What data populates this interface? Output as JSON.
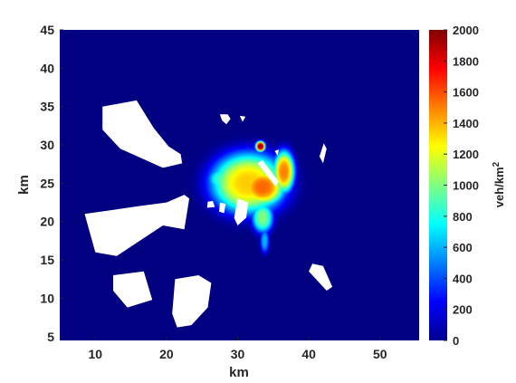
{
  "chart_data": {
    "type": "heatmap",
    "xlabel": "km",
    "ylabel": "km",
    "xlim": [
      5,
      55.5
    ],
    "ylim": [
      4.5,
      45
    ],
    "x_ticks": [
      10,
      20,
      30,
      40,
      50
    ],
    "y_ticks": [
      5,
      10,
      15,
      20,
      25,
      30,
      35,
      40,
      45
    ],
    "colorbar": {
      "label": "veh/km",
      "label_superscript": "2",
      "colormap": "jet",
      "range": [
        0,
        2000
      ],
      "ticks": [
        0,
        200,
        400,
        600,
        800,
        1000,
        1200,
        1400,
        1600,
        1800,
        2000
      ]
    },
    "background_value": 0,
    "hotspots": [
      {
        "x": 31.5,
        "y": 25,
        "sx": 4.2,
        "sy": 3.2,
        "peak": 1350
      },
      {
        "x": 33.5,
        "y": 24.5,
        "sx": 2.5,
        "sy": 2.0,
        "peak": 1550
      },
      {
        "x": 36.5,
        "y": 26.5,
        "sx": 1.2,
        "sy": 2.2,
        "peak": 1500
      },
      {
        "x": 33.5,
        "y": 20.5,
        "sx": 1.2,
        "sy": 1.6,
        "peak": 1000
      },
      {
        "x": 33.8,
        "y": 17.5,
        "sx": 0.5,
        "sy": 1.3,
        "peak": 600
      },
      {
        "x": 28.0,
        "y": 25.5,
        "sx": 1.8,
        "sy": 1.3,
        "peak": 900
      },
      {
        "x": 33.2,
        "y": 29.8,
        "sx": 0.55,
        "sy": 0.55,
        "peak": 2000
      }
    ],
    "obstacles": [
      [
        [
          11,
          35
        ],
        [
          15.8,
          35.8
        ],
        [
          18.2,
          32.2
        ],
        [
          20.3,
          29.8
        ],
        [
          22,
          28.8
        ],
        [
          22.2,
          27.6
        ],
        [
          19.5,
          27
        ],
        [
          13.5,
          29.5
        ],
        [
          11,
          32
        ]
      ],
      [
        [
          8.5,
          21
        ],
        [
          16,
          22
        ],
        [
          20,
          22.5
        ],
        [
          22.5,
          23.5
        ],
        [
          23.2,
          23
        ],
        [
          22.5,
          19
        ],
        [
          19.5,
          19.5
        ],
        [
          13,
          15.5
        ],
        [
          10,
          16
        ]
      ],
      [
        [
          12.5,
          13
        ],
        [
          16.8,
          13.5
        ],
        [
          18,
          9.8
        ],
        [
          14.5,
          8.8
        ],
        [
          12.5,
          11
        ]
      ],
      [
        [
          21.2,
          12.5
        ],
        [
          24.5,
          13
        ],
        [
          26.3,
          12
        ],
        [
          25.8,
          8.8
        ],
        [
          23.5,
          6.5
        ],
        [
          21.5,
          6.2
        ],
        [
          20.8,
          8
        ]
      ],
      [
        [
          40.5,
          14.5
        ],
        [
          42,
          14.2
        ],
        [
          43.3,
          11.5
        ],
        [
          42.5,
          11
        ],
        [
          40,
          13.5
        ]
      ],
      [
        [
          27.5,
          34
        ],
        [
          28.6,
          34
        ],
        [
          29,
          33.4
        ],
        [
          28.4,
          32.7
        ],
        [
          27.8,
          33.2
        ]
      ],
      [
        [
          30.3,
          33.8
        ],
        [
          31.1,
          33.7
        ],
        [
          30.7,
          33
        ]
      ],
      [
        [
          41.5,
          28.5
        ],
        [
          42.1,
          30.2
        ],
        [
          42.5,
          29.5
        ],
        [
          42,
          27.6
        ]
      ],
      [
        [
          32.8,
          27.6
        ],
        [
          35.3,
          24.6
        ],
        [
          35.8,
          25.2
        ],
        [
          33.5,
          28
        ]
      ],
      [
        [
          30,
          23
        ],
        [
          31.5,
          22.5
        ],
        [
          31.2,
          20.5
        ],
        [
          30,
          19.5
        ],
        [
          29.5,
          20.5
        ]
      ],
      [
        [
          27.5,
          22.5
        ],
        [
          28.3,
          22.3
        ],
        [
          28.1,
          21.1
        ],
        [
          27.4,
          21.3
        ]
      ],
      [
        [
          25.7,
          21.8
        ],
        [
          26.8,
          21.9
        ],
        [
          26.5,
          22.7
        ],
        [
          25.8,
          22.6
        ]
      ],
      [
        [
          35.2,
          29.2
        ],
        [
          35.8,
          29.4
        ],
        [
          35.6,
          28.6
        ]
      ]
    ]
  }
}
